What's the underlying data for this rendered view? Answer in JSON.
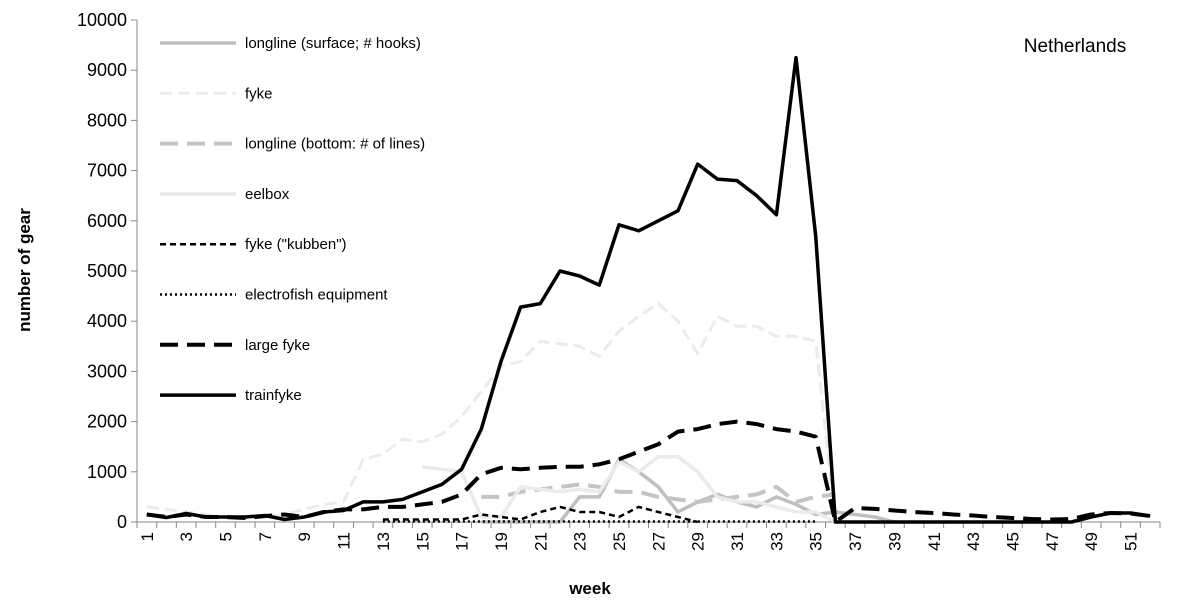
{
  "chart_data": {
    "type": "line",
    "annotation": "Netherlands",
    "x_label": "week",
    "y_label": "number of gear",
    "categories": [
      1,
      null,
      3,
      null,
      5,
      null,
      7,
      null,
      9,
      null,
      11,
      null,
      13,
      null,
      15,
      null,
      17,
      null,
      19,
      null,
      21,
      null,
      23,
      null,
      25,
      null,
      27,
      null,
      29,
      null,
      31,
      null,
      33,
      null,
      35,
      null,
      37,
      null,
      39,
      null,
      41,
      null,
      43,
      null,
      45,
      null,
      47,
      null,
      49,
      null,
      51,
      null
    ],
    "ylim": [
      0,
      10000
    ],
    "yticks": [
      0,
      1000,
      2000,
      3000,
      4000,
      5000,
      6000,
      7000,
      8000,
      9000,
      10000
    ],
    "legend": "top-left",
    "series": [
      {
        "name": "longline (surface; # hooks)",
        "color": "#bfbfbf",
        "dash": "solid",
        "values": [
          null,
          null,
          null,
          null,
          null,
          null,
          null,
          null,
          null,
          null,
          null,
          null,
          null,
          null,
          null,
          null,
          null,
          0,
          0,
          0,
          0,
          0,
          500,
          500,
          1250,
          1000,
          700,
          200,
          400,
          550,
          400,
          300,
          500,
          350,
          150,
          200,
          150,
          100,
          0,
          null,
          null,
          null,
          null,
          null,
          null,
          null,
          null,
          null,
          null,
          null,
          null,
          null
        ]
      },
      {
        "name": "fyke",
        "color": "#ebebeb",
        "dash": "dashed",
        "values": [
          300,
          250,
          200,
          150,
          100,
          100,
          100,
          150,
          250,
          350,
          400,
          1250,
          1350,
          1650,
          1600,
          1750,
          2100,
          2600,
          3100,
          3200,
          3600,
          3550,
          3500,
          3300,
          3800,
          4100,
          4350,
          4000,
          3350,
          4100,
          3900,
          3900,
          3700,
          3700,
          3600,
          0,
          null,
          null,
          null,
          null,
          null,
          null,
          null,
          null,
          null,
          null,
          null,
          null,
          null,
          null,
          null,
          null
        ]
      },
      {
        "name": "longline (bottom: # of lines)",
        "color": "#c4c4c4",
        "dash": "long-dashed",
        "values": [
          null,
          null,
          null,
          null,
          null,
          null,
          null,
          null,
          null,
          null,
          null,
          null,
          null,
          null,
          null,
          null,
          null,
          500,
          500,
          600,
          650,
          700,
          750,
          700,
          600,
          600,
          500,
          450,
          400,
          450,
          500,
          550,
          700,
          400,
          500,
          550,
          null,
          null,
          null,
          null,
          null,
          null,
          null,
          null,
          null,
          null,
          null,
          null,
          null,
          null,
          null,
          null
        ]
      },
      {
        "name": "eelbox",
        "color": "#ebebeb",
        "dash": "solid",
        "values": [
          null,
          null,
          null,
          null,
          null,
          null,
          null,
          null,
          null,
          null,
          null,
          null,
          null,
          null,
          1100,
          1050,
          1000,
          100,
          100,
          700,
          650,
          600,
          650,
          600,
          1200,
          1000,
          1300,
          1300,
          1000,
          500,
          400,
          400,
          300,
          200,
          200,
          0,
          null,
          null,
          null,
          null,
          null,
          null,
          null,
          null,
          null,
          null,
          null,
          null,
          null,
          null,
          null,
          null
        ]
      },
      {
        "name": "fyke (\"kubben\")",
        "color": "#000000",
        "dash": "short-dashed",
        "values": [
          null,
          null,
          null,
          null,
          null,
          null,
          null,
          null,
          null,
          null,
          null,
          null,
          50,
          50,
          50,
          50,
          50,
          150,
          100,
          50,
          200,
          300,
          200,
          200,
          100,
          300,
          200,
          100,
          0,
          null,
          null,
          null,
          null,
          null,
          null,
          null,
          null,
          null,
          null,
          null,
          null,
          null,
          null,
          null,
          null,
          null,
          null,
          null,
          null,
          null,
          null,
          null
        ]
      },
      {
        "name": "electrofish equipment",
        "color": "#000000",
        "dash": "dotted",
        "values": [
          null,
          null,
          null,
          null,
          null,
          null,
          null,
          null,
          null,
          null,
          null,
          null,
          10,
          10,
          10,
          10,
          10,
          10,
          10,
          10,
          10,
          10,
          10,
          10,
          10,
          10,
          10,
          10,
          10,
          10,
          10,
          10,
          10,
          10,
          10,
          null,
          null,
          null,
          null,
          null,
          null,
          null,
          null,
          null,
          null,
          null,
          null,
          null,
          null,
          null,
          null,
          null
        ]
      },
      {
        "name": "large fyke",
        "color": "#000000",
        "dash": "long-dashed",
        "values": [
          150,
          100,
          150,
          100,
          100,
          80,
          120,
          150,
          100,
          200,
          250,
          250,
          300,
          300,
          350,
          400,
          550,
          950,
          1080,
          1050,
          1080,
          1100,
          1100,
          1150,
          1250,
          1400,
          1550,
          1800,
          1850,
          1950,
          2000,
          1950,
          1850,
          1800,
          1700,
          0,
          280,
          260,
          230,
          200,
          180,
          150,
          130,
          100,
          80,
          60,
          50,
          60,
          150,
          180,
          170,
          120
        ]
      },
      {
        "name": "trainfyke",
        "color": "#000000",
        "dash": "solid",
        "values": [
          150,
          90,
          170,
          100,
          100,
          100,
          130,
          50,
          100,
          200,
          230,
          400,
          400,
          450,
          600,
          750,
          1050,
          1850,
          3200,
          4280,
          4350,
          5000,
          4900,
          4720,
          5920,
          5800,
          6000,
          6200,
          7130,
          6830,
          6800,
          6500,
          6120,
          9250,
          5700,
          0,
          0,
          0,
          0,
          0,
          0,
          0,
          0,
          0,
          0,
          0,
          0,
          0,
          100,
          180,
          180,
          120
        ]
      }
    ]
  }
}
